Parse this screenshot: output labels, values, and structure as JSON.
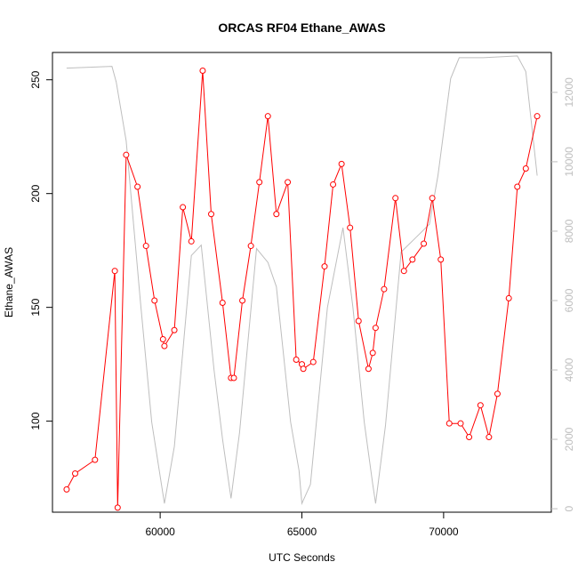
{
  "chart_data": {
    "type": "line",
    "title": "ORCAS RF04 Ethane_AWAS",
    "xlabel": "UTC Seconds",
    "ylabel": "Ethane_AWAS",
    "xlim": [
      56200,
      73800
    ],
    "ylim": [
      60,
      262
    ],
    "y2lim": [
      -100,
      13150
    ],
    "x_ticks": [
      60000,
      65000,
      70000
    ],
    "x_tick_labels": [
      "60000",
      "65000",
      "70000"
    ],
    "y_ticks": [
      100,
      150,
      200,
      250
    ],
    "y_tick_labels": [
      "100",
      "150",
      "200",
      "250"
    ],
    "y2_ticks": [
      0,
      2000,
      4000,
      6000,
      8000,
      10000,
      12000
    ],
    "y2_tick_labels": [
      "0",
      "2000",
      "4000",
      "6000",
      "8000",
      "10000",
      "12000"
    ],
    "colors": {
      "primary": "#ff0000",
      "secondary": "#bebebe",
      "axis": "#000000"
    },
    "series": [
      {
        "axis": "left",
        "style": "line+points",
        "points": [
          [
            56700,
            70
          ],
          [
            57000,
            77
          ],
          [
            57700,
            83
          ],
          [
            58400,
            166
          ],
          [
            58500,
            62
          ],
          [
            58800,
            217
          ],
          [
            59200,
            203
          ],
          [
            59500,
            177
          ],
          [
            59800,
            153
          ],
          [
            60100,
            136
          ],
          [
            60150,
            133
          ],
          [
            60500,
            140
          ],
          [
            60800,
            194
          ],
          [
            61100,
            179
          ],
          [
            61500,
            254
          ],
          [
            61800,
            191
          ],
          [
            62200,
            152
          ],
          [
            62500,
            119
          ],
          [
            62600,
            119
          ],
          [
            62900,
            153
          ],
          [
            63200,
            177
          ],
          [
            63500,
            205
          ],
          [
            63800,
            234
          ],
          [
            64100,
            191
          ],
          [
            64500,
            205
          ],
          [
            64800,
            127
          ],
          [
            65000,
            125
          ],
          [
            65050,
            123
          ],
          [
            65400,
            126
          ],
          [
            65800,
            168
          ],
          [
            66100,
            204
          ],
          [
            66400,
            213
          ],
          [
            66700,
            185
          ],
          [
            67000,
            144
          ],
          [
            67350,
            123
          ],
          [
            67500,
            130
          ],
          [
            67600,
            141
          ],
          [
            67900,
            158
          ],
          [
            68300,
            198
          ],
          [
            68600,
            166
          ],
          [
            68900,
            171
          ],
          [
            69300,
            178
          ],
          [
            69600,
            198
          ],
          [
            69900,
            171
          ],
          [
            70200,
            99
          ],
          [
            70600,
            99
          ],
          [
            70900,
            93
          ],
          [
            71300,
            107
          ],
          [
            71600,
            93
          ],
          [
            71900,
            112
          ],
          [
            72300,
            154
          ],
          [
            72600,
            203
          ],
          [
            72900,
            211
          ],
          [
            73300,
            234
          ]
        ]
      },
      {
        "axis": "right",
        "style": "line",
        "points": [
          [
            56700,
            12700
          ],
          [
            58300,
            12750
          ],
          [
            58450,
            12300
          ],
          [
            58800,
            10600
          ],
          [
            59300,
            6000
          ],
          [
            59700,
            2500
          ],
          [
            60150,
            150
          ],
          [
            60500,
            1800
          ],
          [
            61100,
            7300
          ],
          [
            61450,
            7600
          ],
          [
            61900,
            4000
          ],
          [
            62200,
            2000
          ],
          [
            62500,
            300
          ],
          [
            62800,
            2200
          ],
          [
            63400,
            7500
          ],
          [
            63800,
            7100
          ],
          [
            64100,
            6400
          ],
          [
            64600,
            2500
          ],
          [
            64900,
            1100
          ],
          [
            65000,
            150
          ],
          [
            65300,
            700
          ],
          [
            65900,
            5800
          ],
          [
            66450,
            8100
          ],
          [
            66800,
            5800
          ],
          [
            67200,
            2500
          ],
          [
            67500,
            700
          ],
          [
            67600,
            150
          ],
          [
            67950,
            2400
          ],
          [
            68500,
            7400
          ],
          [
            69000,
            7800
          ],
          [
            69500,
            8200
          ],
          [
            69800,
            9600
          ],
          [
            70250,
            12400
          ],
          [
            70550,
            13000
          ],
          [
            71400,
            13000
          ],
          [
            72600,
            13050
          ],
          [
            72900,
            12600
          ],
          [
            73300,
            9600
          ]
        ]
      }
    ]
  }
}
